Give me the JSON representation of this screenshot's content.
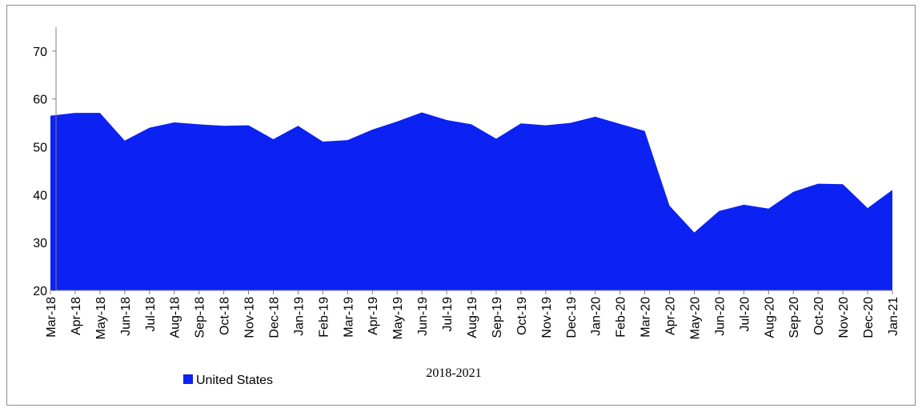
{
  "chart_data": {
    "type": "area",
    "xlabel": "2018-2021",
    "ylabel": "",
    "ylim": [
      20,
      75
    ],
    "yticks": [
      20,
      30,
      40,
      50,
      60,
      70
    ],
    "legend_position": "bottom-left",
    "grid": false,
    "categories": [
      "Mar-18",
      "Apr-18",
      "May-18",
      "Jun-18",
      "Jul-18",
      "Aug-18",
      "Sep-18",
      "Oct-18",
      "Nov-18",
      "Dec-18",
      "Jan-19",
      "Feb-19",
      "Mar-19",
      "Apr-19",
      "May-19",
      "Jun-19",
      "Jul-19",
      "Aug-19",
      "Sep-19",
      "Oct-19",
      "Nov-19",
      "Dec-19",
      "Jan-20",
      "Feb-20",
      "Mar-20",
      "Apr-20",
      "May-20",
      "Jun-20",
      "Jul-20",
      "Aug-20",
      "Sep-20",
      "Oct-20",
      "Nov-20",
      "Dec-20",
      "Jan-21"
    ],
    "series": [
      {
        "name": "United States",
        "color": "#0b22f2",
        "values": [
          56.5,
          57.1,
          57.1,
          51.3,
          54.0,
          55.1,
          54.7,
          54.4,
          54.5,
          51.6,
          54.4,
          51.1,
          51.4,
          53.6,
          55.3,
          57.2,
          55.6,
          54.7,
          51.7,
          54.9,
          54.5,
          55.0,
          56.3,
          54.8,
          53.3,
          37.7,
          32.1,
          36.6,
          37.9,
          37.1,
          40.6,
          42.3,
          42.2,
          37.2,
          41.0
        ]
      }
    ]
  }
}
